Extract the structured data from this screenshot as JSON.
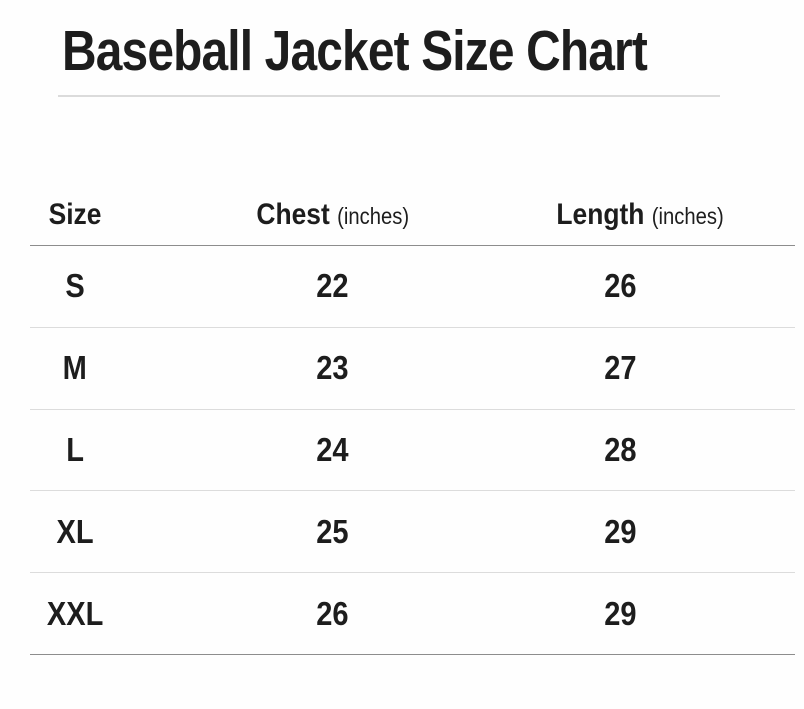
{
  "title": "Baseball Jacket Size Chart",
  "headers": [
    {
      "label": "Size",
      "unit": ""
    },
    {
      "label": "Chest",
      "unit": "(inches)"
    },
    {
      "label": "Length",
      "unit": "(inches)"
    }
  ],
  "chart_data": {
    "type": "table",
    "title": "Baseball Jacket Size Chart",
    "columns": [
      "Size",
      "Chest (inches)",
      "Length (inches)"
    ],
    "rows": [
      [
        "S",
        22,
        26
      ],
      [
        "M",
        23,
        27
      ],
      [
        "L",
        24,
        28
      ],
      [
        "XL",
        25,
        29
      ],
      [
        "XXL",
        26,
        29
      ]
    ]
  },
  "colors": {
    "text": "#1d1d1d",
    "strong_rule": "#8d8d8d",
    "light_rule": "#dcdcdc",
    "title_rule": "#dbdbdb",
    "background": "#fefefe"
  }
}
